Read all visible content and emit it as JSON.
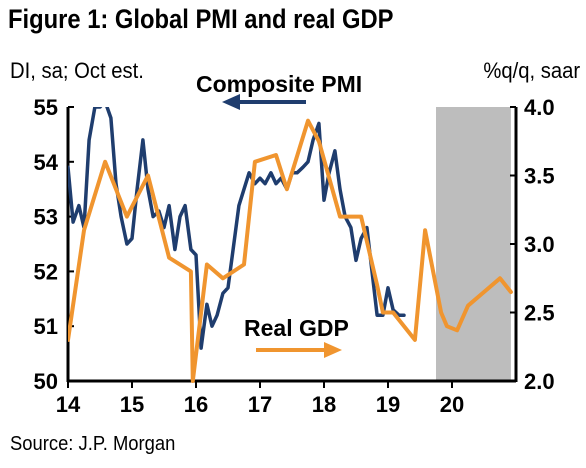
{
  "title": "Figure 1: Global PMI and real GDP",
  "left_unit": "DI, sa; Oct est.",
  "right_unit": "%q/q, saar",
  "source": "Source: J.P. Morgan",
  "chart_data": {
    "type": "line",
    "x_ticks": [
      "14",
      "15",
      "16",
      "17",
      "18",
      "19",
      "20"
    ],
    "y_left": {
      "ticks": [
        "50",
        "51",
        "52",
        "53",
        "54",
        "55"
      ],
      "range": [
        50,
        55
      ]
    },
    "y_right": {
      "ticks": [
        "2.0",
        "2.5",
        "3.0",
        "3.5",
        "4.0"
      ],
      "range": [
        2.0,
        4.0
      ]
    },
    "forecast_region": {
      "from": 2019.75,
      "to": 2020.92
    },
    "series": [
      {
        "name": "Composite PMI",
        "axis": "left",
        "color": "#1f3d6e",
        "points": [
          [
            2014.0,
            53.9
          ],
          [
            2014.08,
            52.9
          ],
          [
            2014.17,
            53.2
          ],
          [
            2014.25,
            52.8
          ],
          [
            2014.33,
            54.4
          ],
          [
            2014.42,
            55.0
          ],
          [
            2014.5,
            55.0
          ],
          [
            2014.58,
            55.1
          ],
          [
            2014.67,
            54.8
          ],
          [
            2014.75,
            53.6
          ],
          [
            2014.83,
            53.0
          ],
          [
            2014.92,
            52.5
          ],
          [
            2015.0,
            52.6
          ],
          [
            2015.08,
            53.5
          ],
          [
            2015.17,
            54.4
          ],
          [
            2015.25,
            53.5
          ],
          [
            2015.33,
            53.0
          ],
          [
            2015.42,
            53.1
          ],
          [
            2015.5,
            52.8
          ],
          [
            2015.58,
            53.2
          ],
          [
            2015.67,
            52.4
          ],
          [
            2015.75,
            53.0
          ],
          [
            2015.83,
            53.2
          ],
          [
            2015.92,
            52.4
          ],
          [
            2016.0,
            52.3
          ],
          [
            2016.08,
            50.6
          ],
          [
            2016.17,
            51.4
          ],
          [
            2016.25,
            51.0
          ],
          [
            2016.33,
            51.2
          ],
          [
            2016.42,
            51.6
          ],
          [
            2016.5,
            51.7
          ],
          [
            2016.58,
            52.4
          ],
          [
            2016.67,
            53.2
          ],
          [
            2016.75,
            53.5
          ],
          [
            2016.83,
            53.8
          ],
          [
            2016.92,
            53.6
          ],
          [
            2017.0,
            53.7
          ],
          [
            2017.08,
            53.6
          ],
          [
            2017.17,
            53.8
          ],
          [
            2017.25,
            53.6
          ],
          [
            2017.33,
            53.7
          ],
          [
            2017.42,
            53.5
          ],
          [
            2017.5,
            53.8
          ],
          [
            2017.58,
            53.8
          ],
          [
            2017.67,
            53.9
          ],
          [
            2017.75,
            54.0
          ],
          [
            2017.83,
            54.4
          ],
          [
            2017.92,
            54.7
          ],
          [
            2018.0,
            53.3
          ],
          [
            2018.08,
            53.8
          ],
          [
            2018.17,
            54.2
          ],
          [
            2018.25,
            53.5
          ],
          [
            2018.33,
            53.0
          ],
          [
            2018.42,
            52.8
          ],
          [
            2018.5,
            52.2
          ],
          [
            2018.58,
            52.6
          ],
          [
            2018.67,
            52.8
          ],
          [
            2018.75,
            52.0
          ],
          [
            2018.83,
            51.2
          ],
          [
            2018.92,
            51.2
          ],
          [
            2019.0,
            51.7
          ],
          [
            2019.08,
            51.3
          ],
          [
            2019.17,
            51.2
          ],
          [
            2019.25,
            51.2
          ]
        ]
      },
      {
        "name": "Real GDP",
        "axis": "right",
        "color": "#f0952f",
        "points": [
          [
            2014.0,
            2.3
          ],
          [
            2014.25,
            3.1
          ],
          [
            2014.58,
            3.6
          ],
          [
            2014.92,
            3.2
          ],
          [
            2015.25,
            3.5
          ],
          [
            2015.58,
            2.9
          ],
          [
            2015.92,
            2.8
          ],
          [
            2015.95,
            2.0
          ],
          [
            2016.17,
            2.85
          ],
          [
            2016.42,
            2.75
          ],
          [
            2016.75,
            2.85
          ],
          [
            2016.92,
            3.6
          ],
          [
            2017.25,
            3.65
          ],
          [
            2017.42,
            3.4
          ],
          [
            2017.75,
            3.9
          ],
          [
            2017.92,
            3.75
          ],
          [
            2018.25,
            3.2
          ],
          [
            2018.58,
            3.2
          ],
          [
            2018.83,
            2.7
          ],
          [
            2018.92,
            2.5
          ],
          [
            2019.08,
            2.5
          ],
          [
            2019.42,
            2.3
          ],
          [
            2019.58,
            3.1
          ],
          [
            2019.83,
            2.5
          ],
          [
            2019.92,
            2.4
          ],
          [
            2020.08,
            2.37
          ],
          [
            2020.25,
            2.55
          ],
          [
            2020.5,
            2.65
          ],
          [
            2020.75,
            2.75
          ],
          [
            2020.92,
            2.65
          ]
        ]
      }
    ],
    "annotations": [
      {
        "text": "Composite PMI",
        "arrow": "left",
        "series": "Composite PMI"
      },
      {
        "text": "Real GDP",
        "arrow": "right",
        "series": "Real GDP"
      }
    ]
  }
}
